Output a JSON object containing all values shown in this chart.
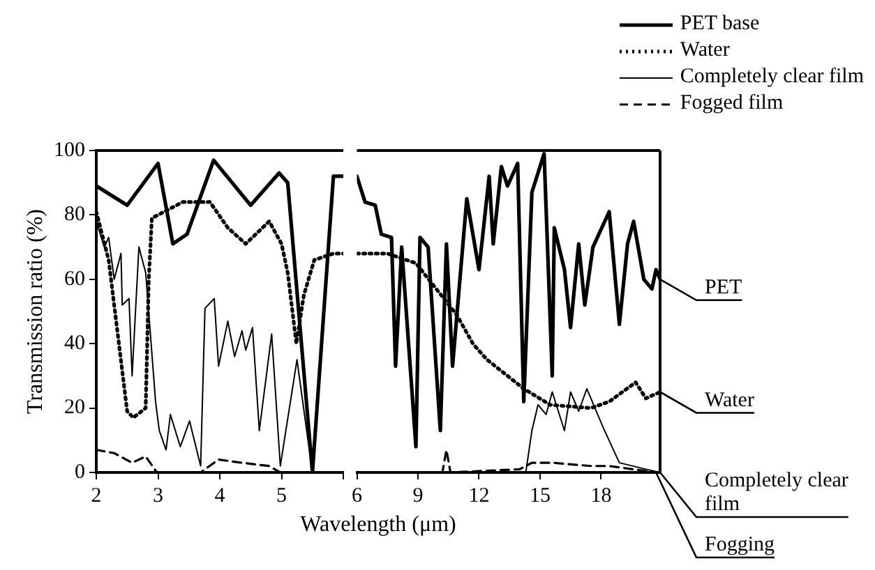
{
  "chart_data": [
    {
      "type": "line",
      "ylabel": "Transmission ratio (%)",
      "xlim": [
        2,
        6
      ],
      "xticks": [
        2,
        3,
        4,
        5,
        {
          "value": 6,
          "label": null
        }
      ],
      "ylim": [
        0,
        100
      ],
      "yticks": [
        0,
        20,
        40,
        60,
        80,
        100
      ],
      "grid": false,
      "series": [
        {
          "color": "#000000",
          "line_style": "solid",
          "x": [
            2,
            2.5,
            3,
            3.24,
            3.47,
            3.9,
            4.5,
            4.96,
            5.1,
            5.5,
            5.84,
            6
          ],
          "values": [
            89,
            83,
            96,
            71,
            74,
            97,
            83,
            93,
            90,
            0,
            92,
            92
          ]
        },
        {
          "color": "#000000",
          "line_style": "dotted",
          "x": [
            2,
            2.2,
            2.36,
            2.5,
            2.6,
            2.8,
            2.85,
            2.9,
            3.4,
            3.84,
            4.13,
            4.42,
            4.8,
            5,
            5.1,
            5.24,
            5.36,
            5.53,
            5.84,
            6
          ],
          "values": [
            81,
            66,
            41,
            19,
            17,
            20,
            60,
            79,
            84,
            84,
            76,
            71,
            78,
            71,
            62,
            40,
            55,
            66,
            68,
            68
          ]
        },
        {
          "color": "#000000",
          "line_style": "solid",
          "x": [
            2,
            2.13,
            2.2,
            2.29,
            2.4,
            2.42,
            2.53,
            2.58,
            2.69,
            2.8,
            2.96,
            3.02,
            3.13,
            3.2,
            3.36,
            3.51,
            3.69,
            3.76,
            3.91,
            3.98,
            4.13,
            4.24,
            4.36,
            4.42,
            4.53,
            4.64,
            4.84,
            4.98,
            5.25,
            5.5,
            6
          ],
          "values": [
            78,
            70,
            73,
            60,
            68,
            52,
            54,
            30,
            70,
            62,
            22,
            13,
            7,
            18,
            8,
            16,
            2,
            51,
            54,
            33,
            47,
            36,
            44,
            38,
            45,
            13,
            43,
            2,
            35,
            0,
            0
          ]
        },
        {
          "color": "#000000",
          "line_style": "dashed",
          "x": [
            2,
            2.29,
            2.58,
            2.8,
            2.98,
            3.69,
            3.98,
            4.36,
            4.8,
            4.98,
            6
          ],
          "values": [
            7,
            6,
            3,
            5,
            0,
            0,
            4,
            3,
            2,
            0,
            0
          ]
        }
      ]
    },
    {
      "type": "line",
      "xlabel": "Wavelength (μm)",
      "xlim": [
        6,
        20.9
      ],
      "xticks": [
        6,
        9,
        12,
        15,
        18
      ],
      "ylim": [
        0,
        100
      ],
      "yticks": [
        0,
        20,
        40,
        60,
        80,
        100
      ],
      "grid": false,
      "tick_labels": "x",
      "legend": "top right",
      "series": [
        {
          "name": "PET base",
          "color": "#000000",
          "line_style": "solid",
          "x": [
            6,
            6.4,
            6.9,
            7.2,
            7.7,
            7.9,
            8.2,
            8.9,
            9.1,
            9.5,
            10.1,
            10.4,
            10.7,
            11.4,
            12,
            12.5,
            12.7,
            13.1,
            13.4,
            13.9,
            14.2,
            14.6,
            15.2,
            15.6,
            15.7,
            16.2,
            16.5,
            16.9,
            17.2,
            17.6,
            18.4,
            18.9,
            19.3,
            19.6,
            20.1,
            20.5,
            20.7,
            20.9
          ],
          "values": [
            92,
            84,
            83,
            74,
            73,
            33,
            70,
            8,
            73,
            70,
            13,
            71,
            33,
            85,
            63,
            92,
            71,
            95,
            89,
            96,
            22,
            87,
            99,
            30,
            76,
            63,
            45,
            71,
            52,
            70,
            81,
            46,
            71,
            78,
            60,
            57,
            63,
            60
          ]
        },
        {
          "name": "Water",
          "color": "#000000",
          "line_style": "dotted",
          "x": [
            6,
            7.5,
            8.9,
            10.9,
            11.7,
            12.4,
            14.2,
            15.5,
            17.5,
            18.4,
            19.7,
            20.2,
            20.9
          ],
          "values": [
            68,
            68,
            65,
            49,
            40,
            35,
            26,
            21,
            20,
            22,
            28,
            23,
            25
          ]
        },
        {
          "name": "Completely clear film",
          "color": "#000000",
          "line_style": "solid",
          "x": [
            6,
            14.3,
            14.6,
            14.9,
            15.3,
            15.6,
            16.2,
            16.5,
            16.9,
            17.3,
            18.1,
            18.9,
            20.2,
            20.9
          ],
          "values": [
            0,
            0,
            13,
            21,
            18,
            25,
            13,
            25,
            19,
            26,
            14,
            3,
            1,
            0
          ]
        },
        {
          "name": "Fogged film",
          "color": "#000000",
          "line_style": "dashed",
          "x": [
            6,
            10.2,
            10.4,
            10.6,
            14,
            14.6,
            15.6,
            17.5,
            18.4,
            20.7
          ],
          "values": [
            0,
            0,
            7,
            0,
            1,
            3,
            3,
            2,
            2,
            0
          ]
        }
      ],
      "annotations": [
        "PET",
        "Water",
        "Completely clear film",
        "Fogging"
      ]
    }
  ]
}
